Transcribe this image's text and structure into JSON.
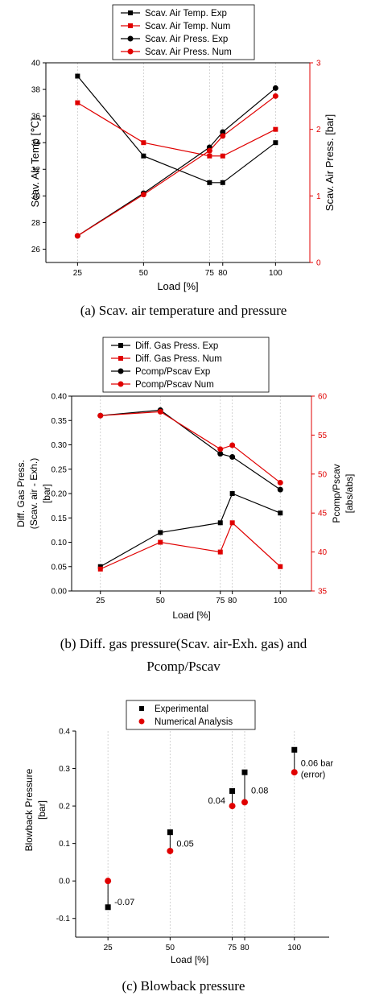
{
  "colors": {
    "exp": "#000000",
    "num": "#e00000"
  },
  "chart_data": [
    {
      "type": "line",
      "x": [
        25,
        50,
        75,
        80,
        100
      ],
      "xticks": [
        "25",
        "50",
        "75",
        "80",
        "100"
      ],
      "xlabel": "Load [%]",
      "ylabel_left": "Scav. Air Temp [℃]",
      "ylabel_right": "Scav. Air Press. [bar]",
      "ylim_left": [
        25,
        40
      ],
      "yticks_left": [
        "26",
        "28",
        "30",
        "32",
        "34",
        "36",
        "38",
        "40"
      ],
      "ylim_right": [
        0,
        3
      ],
      "yticks_right": [
        "0",
        "1",
        "2",
        "3"
      ],
      "legend_position": "top-center",
      "series": [
        {
          "name": "Scav. Air Temp. Exp",
          "axis": "left",
          "marker": "square",
          "color": "#000000",
          "values": [
            39,
            33,
            31,
            31,
            34
          ]
        },
        {
          "name": "Scav. Air Temp. Num",
          "axis": "left",
          "marker": "square",
          "color": "#e00000",
          "values": [
            37,
            34,
            33,
            33,
            35
          ]
        },
        {
          "name": "Scav. Air Press. Exp",
          "axis": "right",
          "marker": "circle",
          "color": "#000000",
          "values": [
            0.4,
            1.04,
            1.73,
            1.96,
            2.62
          ]
        },
        {
          "name": "Scav. Air Press. Num",
          "axis": "right",
          "marker": "circle",
          "color": "#e00000",
          "values": [
            0.4,
            1.02,
            1.68,
            1.9,
            2.5
          ]
        }
      ],
      "caption": "(a)  Scav.  air  temperature  and  pressure"
    },
    {
      "type": "line",
      "x": [
        25,
        50,
        75,
        80,
        100
      ],
      "xticks": [
        "25",
        "50",
        "75",
        "80",
        "100"
      ],
      "xlabel": "Load [%]",
      "ylabel_left": [
        "Diff. Gas Press.",
        "(Scav. air - Exh.)",
        "[bar]"
      ],
      "ylabel_right": [
        "Pcomp/Pscav",
        "[abs/abs]"
      ],
      "ylim_left": [
        0,
        0.4
      ],
      "yticks_left": [
        "0.00",
        "0.05",
        "0.10",
        "0.15",
        "0.20",
        "0.25",
        "0.30",
        "0.35",
        "0.40"
      ],
      "ylim_right": [
        35,
        60
      ],
      "yticks_right": [
        "35",
        "40",
        "45",
        "50",
        "55",
        "60"
      ],
      "legend_position": "top-center",
      "series": [
        {
          "name": "Diff. Gas Press. Exp",
          "axis": "left",
          "marker": "square",
          "color": "#000000",
          "values": [
            0.05,
            0.12,
            0.14,
            0.2,
            0.16
          ]
        },
        {
          "name": "Diff. Gas Press. Num",
          "axis": "left",
          "marker": "square",
          "color": "#e00000",
          "values": [
            0.045,
            0.1,
            0.08,
            0.14,
            0.05
          ]
        },
        {
          "name": "Pcomp/Pscav Exp",
          "axis": "right",
          "marker": "circle",
          "color": "#000000",
          "values": [
            57.5,
            58.2,
            52.6,
            52.2,
            48.0
          ]
        },
        {
          "name": "Pcomp/Pscav Num",
          "axis": "right",
          "marker": "circle",
          "color": "#e00000",
          "values": [
            57.5,
            58.0,
            53.2,
            53.7,
            48.9
          ]
        }
      ],
      "caption_lines": [
        "(b)  Diff.  gas  pressure(Scav.  air-Exh.  gas)  and",
        "Pcomp/Pscav"
      ]
    },
    {
      "type": "scatter",
      "x": [
        25,
        50,
        75,
        80,
        100
      ],
      "xticks": [
        "25",
        "50",
        "75",
        "80",
        "100"
      ],
      "xlabel": "Load [%]",
      "ylabel": [
        "Blowback Pressure",
        "[bar]"
      ],
      "ylim": [
        -0.15,
        0.4
      ],
      "yticks": [
        "-0.1",
        "0.0",
        "0.1",
        "0.2",
        "0.3",
        "0.4"
      ],
      "legend_position": "top-center",
      "series": [
        {
          "name": "Experimental",
          "marker": "square",
          "color": "#000000",
          "values": [
            -0.07,
            0.13,
            0.24,
            0.29,
            0.35
          ]
        },
        {
          "name": "Numerical Analysis",
          "marker": "circle",
          "color": "#e00000",
          "values": [
            0.0,
            0.08,
            0.2,
            0.21,
            0.29
          ]
        }
      ],
      "annotations": [
        {
          "x": 25,
          "text": "-0.07"
        },
        {
          "x": 50,
          "text": "0.05"
        },
        {
          "x": 75,
          "text": "0.04"
        },
        {
          "x": 80,
          "text": "0.08"
        },
        {
          "x": 100,
          "text": "0.06 bar"
        },
        {
          "x": 100,
          "text": "(error)"
        }
      ],
      "caption": "(c)  Blowback  pressure"
    }
  ]
}
